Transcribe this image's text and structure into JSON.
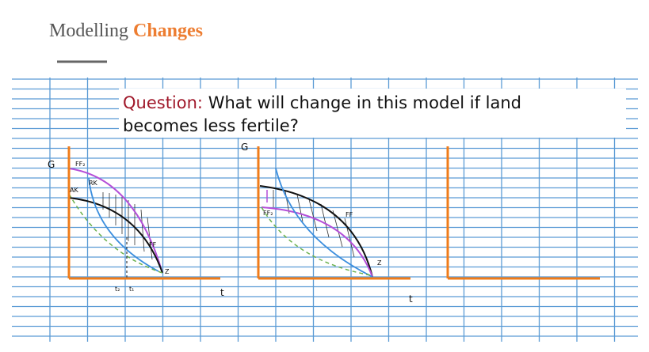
{
  "header": {
    "title": "Modelling",
    "title_highlight": "Changes"
  },
  "question": {
    "label": "Question:",
    "line1": "What will change in this model if land",
    "line2": "becomes less fertile?"
  },
  "panels": [
    {
      "y_label": "G",
      "x_label": "t",
      "curve_labels": [
        "FF₂",
        "RK",
        "AK",
        "FF",
        "Z"
      ],
      "ticks": [
        "t₂",
        "t₁"
      ]
    },
    {
      "y_label": "G",
      "x_label": "t",
      "curve_labels": [
        "FF₂",
        "FF",
        "Z"
      ]
    }
  ]
}
